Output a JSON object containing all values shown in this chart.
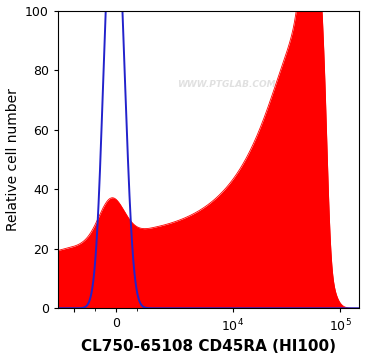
{
  "ylabel": "Relative cell number",
  "xlabel": "CL750-65108 CD45RA (HI100)",
  "ylim": [
    0,
    100
  ],
  "yticks": [
    0,
    20,
    40,
    60,
    80,
    100
  ],
  "red_color": "#FF0000",
  "blue_color": "#2222CC",
  "background_color": "#FFFFFF",
  "watermark": "WWW.PTGLAB.COM",
  "watermark_color": "#C8C8C8",
  "watermark_alpha": 0.55,
  "xlabel_fontsize": 11,
  "axis_label_fontsize": 10,
  "tick_fontsize": 9,
  "linthresh": 2000,
  "linscale": 0.35
}
